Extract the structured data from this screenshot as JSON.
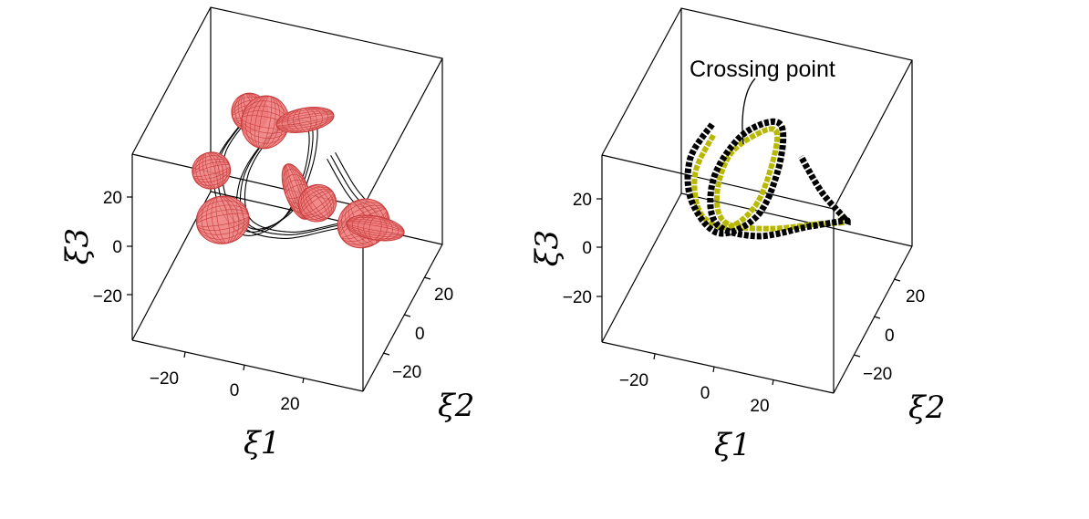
{
  "chart_data": [
    {
      "type": "scatter",
      "description_kind": "3d-curve-with-uncertainty-ellipsoids",
      "xlabel": "ξ1",
      "ylabel": "ξ2",
      "zlabel": "ξ3",
      "x_ticks": [
        "−20",
        "0",
        "20"
      ],
      "y_ticks": [
        "−20",
        "0",
        "20"
      ],
      "z_ticks": [
        "−20",
        "0",
        "20"
      ],
      "xlim": [
        -30,
        30
      ],
      "ylim": [
        -30,
        30
      ],
      "zlim": [
        -37,
        37
      ],
      "colors": {
        "ellipsoid_fill": "#f08080",
        "ellipsoid_edge": "#c83c3c",
        "curve": "#000000"
      },
      "series": [
        {
          "type": "line",
          "points": [
            [
              -15,
              10,
              15
            ],
            [
              -19,
              5,
              5
            ],
            [
              -17,
              0,
              -6
            ],
            [
              -8,
              -6,
              -10
            ],
            [
              2,
              -6,
              0
            ],
            [
              6,
              -2,
              15
            ],
            [
              5,
              5,
              24
            ],
            [
              0,
              10,
              21
            ],
            [
              -8,
              10,
              12
            ],
            [
              -12,
              2,
              2
            ],
            [
              -8,
              -8,
              -4
            ],
            [
              5,
              -15,
              2
            ],
            [
              18,
              -15,
              10
            ],
            [
              25,
              -8,
              8
            ],
            [
              22,
              2,
              -2
            ],
            [
              14,
              8,
              0
            ],
            [
              8,
              10,
              10
            ]
          ]
        },
        {
          "type": "ellipsoids",
          "centers": [
            [
              -13,
              10,
              20
            ],
            [
              -7,
              4,
              24
            ],
            [
              2,
              8,
              24
            ],
            [
              -21,
              4,
              0
            ],
            [
              -16,
              -2,
              -12
            ],
            [
              4,
              -4,
              8
            ],
            [
              12,
              -12,
              14
            ],
            [
              24,
              -12,
              10
            ],
            [
              23,
              0,
              -4
            ]
          ]
        }
      ]
    },
    {
      "type": "scatter",
      "description_kind": "3d-crossing-trajectories",
      "xlabel": "ξ1",
      "ylabel": "ξ2",
      "zlabel": "ξ3",
      "x_ticks": [
        "−20",
        "0",
        "20"
      ],
      "y_ticks": [
        "−20",
        "0",
        "20"
      ],
      "z_ticks": [
        "−20",
        "0",
        "20"
      ],
      "xlim": [
        -30,
        30
      ],
      "ylim": [
        -30,
        30
      ],
      "zlim": [
        -37,
        37
      ],
      "annotation": "Crossing point",
      "series": [
        {
          "color": "#000000",
          "points": [
            [
              -15,
              10,
              15
            ],
            [
              -19,
              5,
              5
            ],
            [
              -17,
              0,
              -6
            ],
            [
              -8,
              -6,
              -10
            ],
            [
              2,
              -6,
              0
            ],
            [
              6,
              -2,
              15
            ],
            [
              5,
              5,
              24
            ],
            [
              0,
              10,
              21
            ],
            [
              -8,
              10,
              12
            ],
            [
              -12,
              2,
              2
            ],
            [
              -8,
              -8,
              -4
            ],
            [
              5,
              -15,
              2
            ],
            [
              18,
              -15,
              10
            ],
            [
              25,
              -8,
              8
            ],
            [
              22,
              2,
              -2
            ],
            [
              14,
              8,
              0
            ],
            [
              8,
              10,
              10
            ]
          ]
        },
        {
          "color": "#b8b800",
          "points": [
            [
              -14,
              8,
              13
            ],
            [
              -17,
              3,
              2
            ],
            [
              -14,
              -2,
              -8
            ],
            [
              -6,
              -5,
              -8
            ],
            [
              1,
              -4,
              2
            ],
            [
              4,
              0,
              16
            ],
            [
              3,
              6,
              22
            ],
            [
              -2,
              8,
              18
            ],
            [
              -9,
              6,
              9
            ],
            [
              -10,
              -1,
              0
            ],
            [
              -5,
              -9,
              -2
            ],
            [
              8,
              -14,
              5
            ],
            [
              20,
              -12,
              9
            ],
            [
              24,
              -5,
              4
            ],
            [
              20,
              3,
              -3
            ]
          ]
        }
      ]
    }
  ]
}
